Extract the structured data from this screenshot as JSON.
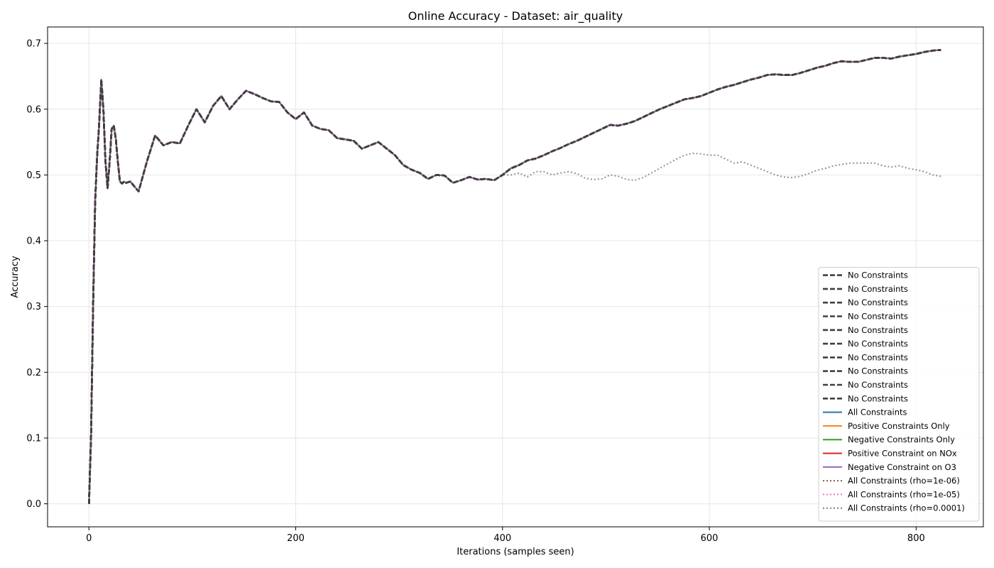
{
  "chart_data": {
    "type": "line",
    "title": "Online Accuracy - Dataset: air_quality",
    "xlabel": "Iterations (samples seen)",
    "ylabel": "Accuracy",
    "xlim": [
      -40,
      865
    ],
    "ylim": [
      -0.035,
      0.725
    ],
    "xticks": [
      0,
      200,
      400,
      600,
      800
    ],
    "yticks": [
      0.0,
      0.1,
      0.2,
      0.3,
      0.4,
      0.5,
      0.6,
      0.7
    ],
    "xtick_labels": [
      "0",
      "200",
      "400",
      "600",
      "800"
    ],
    "ytick_labels": [
      "0.0",
      "0.1",
      "0.2",
      "0.3",
      "0.4",
      "0.5",
      "0.6",
      "0.7"
    ],
    "grid": true,
    "legend_position": "lower right",
    "main_curve": {
      "x": [
        0,
        2,
        4,
        6,
        8,
        10,
        12,
        14,
        16,
        18,
        20,
        22,
        24,
        26,
        28,
        30,
        32,
        34,
        36,
        40,
        48,
        56,
        64,
        72,
        80,
        88,
        96,
        104,
        112,
        120,
        128,
        136,
        144,
        152,
        160,
        168,
        176,
        184,
        192,
        200,
        208,
        216,
        224,
        232,
        240,
        248,
        256,
        264,
        272,
        280,
        288,
        296,
        304,
        312,
        320,
        328,
        336,
        344,
        352,
        360,
        368,
        376,
        384,
        392,
        400,
        408,
        416,
        424,
        432,
        440,
        448,
        456,
        464,
        472,
        480,
        488,
        496,
        504,
        512,
        520,
        528,
        536,
        544,
        552,
        560,
        568,
        576,
        584,
        592,
        600,
        608,
        616,
        624,
        632,
        640,
        648,
        656,
        664,
        672,
        680,
        688,
        696,
        704,
        712,
        720,
        728,
        736,
        744,
        752,
        760,
        768,
        776,
        784,
        792,
        800,
        808,
        816,
        824
      ],
      "y": [
        0.0,
        0.1,
        0.3,
        0.46,
        0.53,
        0.58,
        0.645,
        0.6,
        0.52,
        0.48,
        0.52,
        0.57,
        0.575,
        0.555,
        0.52,
        0.49,
        0.487,
        0.49,
        0.488,
        0.49,
        0.475,
        0.52,
        0.56,
        0.545,
        0.55,
        0.548,
        0.575,
        0.6,
        0.58,
        0.605,
        0.62,
        0.6,
        0.615,
        0.628,
        0.623,
        0.617,
        0.612,
        0.611,
        0.595,
        0.585,
        0.595,
        0.575,
        0.57,
        0.568,
        0.556,
        0.554,
        0.552,
        0.54,
        0.545,
        0.55,
        0.54,
        0.53,
        0.515,
        0.508,
        0.503,
        0.494,
        0.5,
        0.499,
        0.488,
        0.492,
        0.497,
        0.493,
        0.494,
        0.492,
        0.5,
        0.51,
        0.515,
        0.522,
        0.525,
        0.53,
        0.536,
        0.541,
        0.547,
        0.552,
        0.558,
        0.564,
        0.57,
        0.576,
        0.575,
        0.578,
        0.582,
        0.588,
        0.594,
        0.6,
        0.605,
        0.61,
        0.615,
        0.617,
        0.62,
        0.625,
        0.63,
        0.634,
        0.637,
        0.641,
        0.645,
        0.648,
        0.652,
        0.653,
        0.652,
        0.652,
        0.655,
        0.659,
        0.663,
        0.666,
        0.67,
        0.673,
        0.672,
        0.672,
        0.675,
        0.678,
        0.678,
        0.677,
        0.68,
        0.682,
        0.684,
        0.687,
        0.689,
        0.69
      ]
    },
    "grey_tail": {
      "x": [
        400,
        408,
        416,
        424,
        432,
        440,
        448,
        456,
        464,
        472,
        480,
        488,
        496,
        504,
        512,
        520,
        528,
        536,
        544,
        552,
        560,
        568,
        576,
        584,
        592,
        600,
        608,
        616,
        624,
        632,
        640,
        648,
        656,
        664,
        672,
        680,
        688,
        696,
        704,
        712,
        720,
        728,
        736,
        744,
        752,
        760,
        768,
        776,
        784,
        792,
        800,
        808,
        816,
        824
      ],
      "y": [
        0.492,
        0.5,
        0.503,
        0.497,
        0.505,
        0.505,
        0.5,
        0.503,
        0.505,
        0.502,
        0.495,
        0.493,
        0.494,
        0.5,
        0.498,
        0.493,
        0.492,
        0.496,
        0.503,
        0.51,
        0.517,
        0.524,
        0.53,
        0.533,
        0.532,
        0.53,
        0.53,
        0.524,
        0.518,
        0.52,
        0.515,
        0.51,
        0.505,
        0.5,
        0.497,
        0.496,
        0.498,
        0.502,
        0.507,
        0.51,
        0.514,
        0.516,
        0.518,
        0.518,
        0.518,
        0.518,
        0.514,
        0.512,
        0.514,
        0.51,
        0.508,
        0.505,
        0.5,
        0.498
      ]
    },
    "series": [
      {
        "name": "No Constraints",
        "color": "#404040",
        "style": "dashed",
        "curve": "main"
      },
      {
        "name": "No Constraints",
        "color": "#404040",
        "style": "dashed",
        "curve": "main"
      },
      {
        "name": "No Constraints",
        "color": "#404040",
        "style": "dashed",
        "curve": "main"
      },
      {
        "name": "No Constraints",
        "color": "#404040",
        "style": "dashed",
        "curve": "main"
      },
      {
        "name": "No Constraints",
        "color": "#404040",
        "style": "dashed",
        "curve": "main"
      },
      {
        "name": "No Constraints",
        "color": "#404040",
        "style": "dashed",
        "curve": "main"
      },
      {
        "name": "No Constraints",
        "color": "#404040",
        "style": "dashed",
        "curve": "main"
      },
      {
        "name": "No Constraints",
        "color": "#404040",
        "style": "dashed",
        "curve": "main"
      },
      {
        "name": "No Constraints",
        "color": "#404040",
        "style": "dashed",
        "curve": "main"
      },
      {
        "name": "No Constraints",
        "color": "#404040",
        "style": "dashed",
        "curve": "main"
      },
      {
        "name": "All Constraints",
        "color": "#1f77b4",
        "style": "solid",
        "curve": "main"
      },
      {
        "name": "Positive Constraints Only",
        "color": "#ff7f0e",
        "style": "solid",
        "curve": "main"
      },
      {
        "name": "Negative Constraints Only",
        "color": "#2ca02c",
        "style": "solid",
        "curve": "main"
      },
      {
        "name": "Positive Constraint on NOx",
        "color": "#d62728",
        "style": "solid",
        "curve": "main"
      },
      {
        "name": "Negative Constraint on O3",
        "color": "#9467bd",
        "style": "solid",
        "curve": "main"
      },
      {
        "name": "All Constraints (rho=1e-06)",
        "color": "#8c564b",
        "style": "dotted",
        "curve": "main"
      },
      {
        "name": "All Constraints (rho=1e-05)",
        "color": "#e377c2",
        "style": "dotted",
        "curve": "main"
      },
      {
        "name": "All Constraints (rho=0.0001)",
        "color": "#7f7f7f",
        "style": "dotted",
        "curve": "grey"
      }
    ]
  }
}
